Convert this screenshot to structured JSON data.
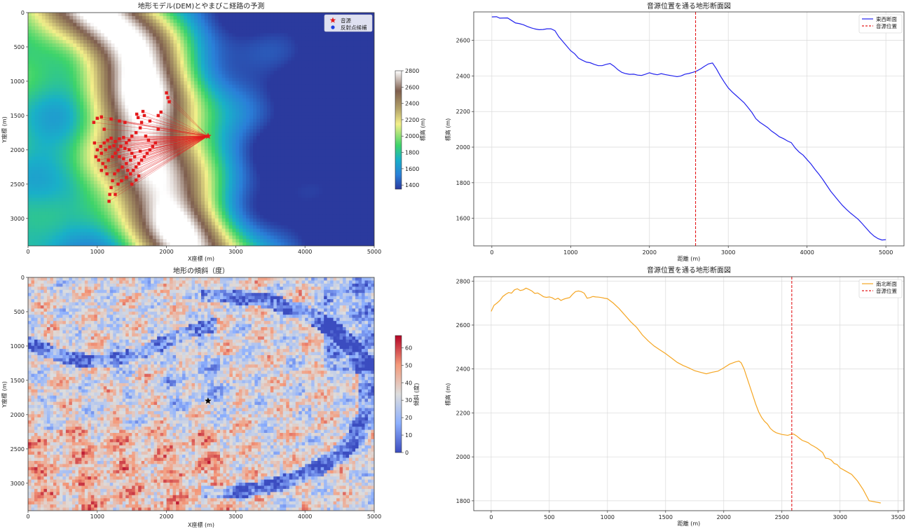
{
  "chart_data": [
    {
      "id": "dem",
      "type": "heatmap",
      "title": "地形モデル(DEM)とやまびこ経路の予測",
      "xlabel": "X座標 (m)",
      "ylabel": "Y座標 (m)",
      "xlim": [
        0,
        5000
      ],
      "ylim": [
        3400,
        0
      ],
      "xticks": [
        0,
        1000,
        2000,
        3000,
        4000,
        5000
      ],
      "yticks": [
        0,
        500,
        1000,
        1500,
        2000,
        2500,
        3000
      ],
      "colorbar": {
        "label": "標高 (m)",
        "range": [
          1350,
          2800
        ],
        "ticks": [
          1400,
          1600,
          1800,
          2000,
          2200,
          2400,
          2600,
          2800
        ],
        "colormap": "terrain"
      },
      "legend": {
        "placement": "top-right",
        "entries": [
          {
            "label": "音源",
            "marker": "star",
            "color": "#e41a1c"
          },
          {
            "label": "反射点候補",
            "marker": "circle",
            "color": "#1f3fe0"
          }
        ]
      },
      "source": {
        "x": 2600,
        "y": 1800
      },
      "reflection_points": [
        [
          950,
          1600
        ],
        [
          1000,
          1540
        ],
        [
          1060,
          1520
        ],
        [
          1200,
          1550
        ],
        [
          1320,
          1580
        ],
        [
          1400,
          1600
        ],
        [
          1570,
          1480
        ],
        [
          1590,
          1530
        ],
        [
          1660,
          1440
        ],
        [
          1680,
          1500
        ],
        [
          1640,
          1600
        ],
        [
          1620,
          1680
        ],
        [
          1560,
          1750
        ],
        [
          1500,
          1800
        ],
        [
          1460,
          1860
        ],
        [
          1420,
          1900
        ],
        [
          1380,
          1820
        ],
        [
          1320,
          1840
        ],
        [
          1260,
          1880
        ],
        [
          1200,
          1830
        ],
        [
          1150,
          1860
        ],
        [
          1100,
          1900
        ],
        [
          1050,
          1950
        ],
        [
          1000,
          2000
        ],
        [
          980,
          2100
        ],
        [
          1020,
          2150
        ],
        [
          1080,
          2200
        ],
        [
          1120,
          2250
        ],
        [
          1160,
          2150
        ],
        [
          1220,
          2100
        ],
        [
          1260,
          2050
        ],
        [
          1300,
          2000
        ],
        [
          1340,
          1950
        ],
        [
          1400,
          1980
        ],
        [
          1460,
          2000
        ],
        [
          1500,
          2050
        ],
        [
          1540,
          2100
        ],
        [
          1480,
          2150
        ],
        [
          1420,
          2200
        ],
        [
          1360,
          2250
        ],
        [
          1300,
          2300
        ],
        [
          1250,
          2350
        ],
        [
          1220,
          2450
        ],
        [
          1200,
          2550
        ],
        [
          1180,
          2650
        ],
        [
          1170,
          2750
        ],
        [
          1300,
          2500
        ],
        [
          1350,
          2450
        ],
        [
          1420,
          2400
        ],
        [
          1480,
          2350
        ],
        [
          1520,
          2300
        ],
        [
          1560,
          2250
        ],
        [
          1600,
          2200
        ],
        [
          1640,
          2150
        ],
        [
          1680,
          2100
        ],
        [
          1720,
          2050
        ],
        [
          1760,
          2000
        ],
        [
          1800,
          1950
        ],
        [
          1840,
          1900
        ],
        [
          1700,
          1800
        ],
        [
          1060,
          2050
        ],
        [
          1120,
          2000
        ],
        [
          1180,
          1960
        ],
        [
          1240,
          1940
        ],
        [
          1320,
          2100
        ],
        [
          1380,
          2130
        ],
        [
          1440,
          2300
        ],
        [
          1600,
          2380
        ],
        [
          1560,
          2440
        ],
        [
          1500,
          2500
        ],
        [
          1060,
          2300
        ],
        [
          1140,
          2350
        ],
        [
          2000,
          1170
        ],
        [
          2020,
          1240
        ],
        [
          2040,
          1300
        ],
        [
          1920,
          1450
        ],
        [
          1880,
          1500
        ],
        [
          1760,
          1580
        ],
        [
          1100,
          1700
        ],
        [
          960,
          1900
        ],
        [
          1260,
          2650
        ],
        [
          1620,
          2020
        ],
        [
          1740,
          1860
        ],
        [
          1880,
          1700
        ]
      ]
    },
    {
      "id": "slope",
      "type": "heatmap",
      "title": "地形の傾斜（度）",
      "xlabel": "X座標 (m)",
      "ylabel": "Y座標 (m)",
      "xlim": [
        0,
        5000
      ],
      "ylim": [
        3400,
        0
      ],
      "xticks": [
        0,
        1000,
        2000,
        3000,
        4000,
        5000
      ],
      "yticks": [
        0,
        500,
        1000,
        1500,
        2000,
        2500,
        3000
      ],
      "colorbar": {
        "label": "傾斜 (度)",
        "range": [
          0,
          67
        ],
        "ticks": [
          0,
          10,
          20,
          30,
          40,
          50,
          60
        ],
        "colormap": "coolwarm"
      },
      "source": {
        "x": 2600,
        "y": 1800
      }
    },
    {
      "id": "ew-profile",
      "type": "line",
      "title": "音源位置を通る地形断面図",
      "xlabel": "距離 (m)",
      "ylabel": "標高 (m)",
      "xlim": [
        -230,
        5230
      ],
      "ylim": [
        1445,
        2760
      ],
      "xticks": [
        0,
        1000,
        2000,
        3000,
        4000,
        5000
      ],
      "yticks": [
        1600,
        1800,
        2000,
        2200,
        2400,
        2600
      ],
      "grid": true,
      "legend": {
        "placement": "top-right"
      },
      "source_x": 2585,
      "series": [
        {
          "name": "東西断面",
          "color": "#2222ee",
          "x": [
            0,
            60,
            100,
            200,
            250,
            300,
            350,
            400,
            450,
            500,
            550,
            600,
            650,
            700,
            750,
            800,
            850,
            900,
            950,
            1000,
            1050,
            1100,
            1150,
            1200,
            1250,
            1300,
            1350,
            1400,
            1450,
            1500,
            1550,
            1600,
            1650,
            1700,
            1750,
            1800,
            1850,
            1900,
            1950,
            2000,
            2050,
            2100,
            2150,
            2200,
            2250,
            2300,
            2350,
            2400,
            2450,
            2500,
            2550,
            2600,
            2650,
            2700,
            2750,
            2800,
            2850,
            2900,
            2950,
            3000,
            3050,
            3100,
            3150,
            3200,
            3250,
            3300,
            3350,
            3400,
            3450,
            3500,
            3550,
            3600,
            3650,
            3700,
            3750,
            3800,
            3850,
            3900,
            3950,
            4000,
            4050,
            4100,
            4150,
            4200,
            4250,
            4300,
            4350,
            4400,
            4450,
            4500,
            4550,
            4600,
            4650,
            4700,
            4750,
            4800,
            4850,
            4900,
            4950,
            5000
          ],
          "values": [
            2732,
            2733,
            2725,
            2726,
            2712,
            2698,
            2694,
            2688,
            2678,
            2670,
            2664,
            2660,
            2661,
            2665,
            2665,
            2655,
            2620,
            2594,
            2568,
            2542,
            2525,
            2500,
            2488,
            2478,
            2474,
            2465,
            2458,
            2458,
            2465,
            2470,
            2455,
            2435,
            2420,
            2413,
            2409,
            2410,
            2405,
            2403,
            2410,
            2418,
            2411,
            2407,
            2413,
            2408,
            2404,
            2400,
            2396,
            2400,
            2410,
            2414,
            2420,
            2428,
            2440,
            2455,
            2468,
            2473,
            2440,
            2400,
            2365,
            2333,
            2310,
            2290,
            2270,
            2250,
            2223,
            2195,
            2160,
            2140,
            2125,
            2110,
            2090,
            2075,
            2058,
            2048,
            2035,
            2025,
            1995,
            1972,
            1955,
            1930,
            1905,
            1875,
            1848,
            1818,
            1785,
            1752,
            1725,
            1698,
            1672,
            1650,
            1630,
            1612,
            1594,
            1570,
            1545,
            1520,
            1500,
            1486,
            1478,
            1480
          ]
        },
        {
          "name": "音源位置",
          "color": "#e41a1c",
          "style": "dashed"
        }
      ]
    },
    {
      "id": "ns-profile",
      "type": "line",
      "title": "音源位置を通る地形断面図",
      "xlabel": "距離 (m)",
      "ylabel": "標高 (m)",
      "xlim": [
        -150,
        3550
      ],
      "ylim": [
        1755,
        2820
      ],
      "xticks": [
        0,
        500,
        1000,
        1500,
        2000,
        2500,
        3000,
        3500
      ],
      "yticks": [
        1800,
        2000,
        2200,
        2400,
        2600,
        2800
      ],
      "grid": true,
      "legend": {
        "placement": "top-right"
      },
      "source_x": 2585,
      "series": [
        {
          "name": "南北断面",
          "color": "#f5a623",
          "x": [
            0,
            25,
            50,
            75,
            100,
            125,
            150,
            175,
            200,
            225,
            250,
            275,
            300,
            325,
            350,
            375,
            400,
            425,
            450,
            475,
            500,
            525,
            550,
            575,
            600,
            625,
            650,
            675,
            700,
            725,
            750,
            775,
            800,
            825,
            850,
            875,
            900,
            925,
            950,
            975,
            1000,
            1050,
            1100,
            1150,
            1200,
            1250,
            1300,
            1350,
            1400,
            1450,
            1500,
            1550,
            1600,
            1650,
            1700,
            1750,
            1800,
            1850,
            1900,
            1950,
            2000,
            2050,
            2100,
            2130,
            2150,
            2175,
            2200,
            2225,
            2250,
            2275,
            2300,
            2325,
            2350,
            2375,
            2400,
            2425,
            2450,
            2475,
            2500,
            2525,
            2550,
            2575,
            2600,
            2625,
            2650,
            2675,
            2700,
            2725,
            2750,
            2775,
            2800,
            2825,
            2850,
            2875,
            2900,
            2925,
            2950,
            2975,
            3000,
            3050,
            3100,
            3150,
            3200,
            3250,
            3300,
            3350
          ],
          "values": [
            2662,
            2690,
            2700,
            2712,
            2730,
            2740,
            2748,
            2745,
            2760,
            2765,
            2757,
            2760,
            2768,
            2762,
            2755,
            2744,
            2746,
            2738,
            2729,
            2726,
            2728,
            2724,
            2716,
            2722,
            2712,
            2718,
            2722,
            2725,
            2740,
            2752,
            2755,
            2752,
            2745,
            2722,
            2725,
            2730,
            2728,
            2727,
            2725,
            2722,
            2720,
            2700,
            2675,
            2645,
            2615,
            2590,
            2555,
            2528,
            2505,
            2487,
            2470,
            2450,
            2430,
            2416,
            2405,
            2392,
            2385,
            2378,
            2385,
            2390,
            2405,
            2422,
            2432,
            2436,
            2428,
            2400,
            2360,
            2320,
            2280,
            2240,
            2205,
            2180,
            2162,
            2150,
            2130,
            2118,
            2110,
            2106,
            2102,
            2100,
            2098,
            2102,
            2104,
            2096,
            2085,
            2075,
            2070,
            2065,
            2055,
            2048,
            2040,
            2030,
            2020,
            1994,
            1992,
            1985,
            1970,
            1965,
            1950,
            1935,
            1920,
            1890,
            1850,
            1800,
            1795,
            1790
          ]
        },
        {
          "name": "音源位置",
          "color": "#e41a1c",
          "style": "dashed"
        }
      ]
    }
  ]
}
